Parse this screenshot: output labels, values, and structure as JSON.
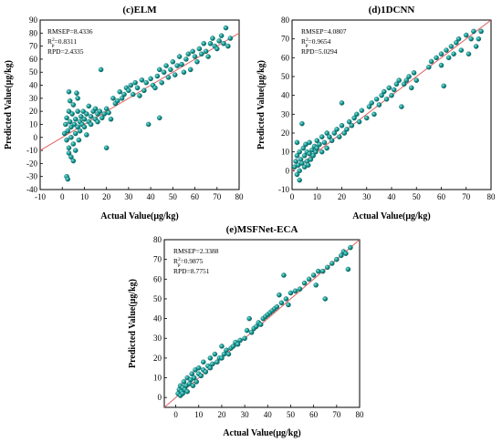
{
  "chart_data": [
    {
      "type": "scatter",
      "title": "(c)ELM",
      "xlabel": "Actual Value(μg/kg)",
      "ylabel": "Predicted Value(μg/kg)",
      "xlim": [
        -10,
        80
      ],
      "ylim": [
        -40,
        90
      ],
      "xticks": [
        -10,
        0,
        10,
        20,
        30,
        40,
        50,
        60,
        70,
        80
      ],
      "yticks": [
        -40,
        -30,
        -20,
        -10,
        0,
        10,
        20,
        30,
        40,
        50,
        60,
        70,
        80,
        90
      ],
      "grid": false,
      "stats": {
        "rmsep": "RMSEP=8.4336",
        "r2_prefix": "R",
        "r2_value": "=0.8311",
        "rpd": "RPD=2.4335"
      },
      "marker_color": "#139a95",
      "line_color": "#e06060",
      "points": [
        [
          1,
          3
        ],
        [
          1.5,
          10
        ],
        [
          2,
          -2
        ],
        [
          2,
          15
        ],
        [
          2.5,
          5
        ],
        [
          3,
          20
        ],
        [
          3,
          -8
        ],
        [
          3.5,
          12
        ],
        [
          2,
          -30
        ],
        [
          2.5,
          -32
        ],
        [
          3,
          35
        ],
        [
          3.5,
          28
        ],
        [
          4,
          0
        ],
        [
          4,
          8
        ],
        [
          4.5,
          18
        ],
        [
          5,
          -5
        ],
        [
          5,
          25
        ],
        [
          5.5,
          10
        ],
        [
          6,
          3
        ],
        [
          6,
          14
        ],
        [
          6.5,
          34
        ],
        [
          7,
          8
        ],
        [
          7,
          20
        ],
        [
          7.5,
          -2
        ],
        [
          8,
          12
        ],
        [
          8,
          5
        ],
        [
          8.5,
          16
        ],
        [
          9,
          10
        ],
        [
          9.5,
          20
        ],
        [
          10,
          8
        ],
        [
          10,
          14
        ],
        [
          11,
          2
        ],
        [
          11,
          18
        ],
        [
          12,
          12
        ],
        [
          12,
          24
        ],
        [
          13,
          10
        ],
        [
          13,
          16
        ],
        [
          14,
          20
        ],
        [
          15,
          14
        ],
        [
          15,
          22
        ],
        [
          16,
          12
        ],
        [
          16,
          18
        ],
        [
          17,
          20
        ],
        [
          17.5,
          52
        ],
        [
          18,
          15
        ],
        [
          19,
          18
        ],
        [
          20,
          22
        ],
        [
          20,
          -8
        ],
        [
          21,
          19
        ],
        [
          22,
          14
        ],
        [
          23,
          30
        ],
        [
          24,
          26
        ],
        [
          25,
          28
        ],
        [
          26,
          35
        ],
        [
          27,
          30
        ],
        [
          28,
          33
        ],
        [
          29,
          38
        ],
        [
          30,
          36
        ],
        [
          31,
          40
        ],
        [
          32,
          33
        ],
        [
          33,
          42
        ],
        [
          34,
          38
        ],
        [
          35,
          32
        ],
        [
          36,
          44
        ],
        [
          37,
          36
        ],
        [
          38,
          42
        ],
        [
          39,
          10
        ],
        [
          40,
          45
        ],
        [
          41,
          40
        ],
        [
          42,
          38
        ],
        [
          43,
          47
        ],
        [
          44,
          52
        ],
        [
          45,
          42
        ],
        [
          46,
          50
        ],
        [
          47,
          55
        ],
        [
          48,
          46
        ],
        [
          49,
          52
        ],
        [
          50,
          58
        ],
        [
          51,
          48
        ],
        [
          52,
          55
        ],
        [
          53,
          62
        ],
        [
          54,
          56
        ],
        [
          55,
          50
        ],
        [
          56,
          60
        ],
        [
          57,
          64
        ],
        [
          58,
          52
        ],
        [
          59,
          66
        ],
        [
          60,
          62
        ],
        [
          61,
          58
        ],
        [
          62,
          68
        ],
        [
          63,
          64
        ],
        [
          64,
          72
        ],
        [
          65,
          66
        ],
        [
          66,
          62
        ],
        [
          67,
          72
        ],
        [
          68,
          76
        ],
        [
          69,
          70
        ],
        [
          70,
          68
        ],
        [
          71,
          74
        ],
        [
          72,
          78
        ],
        [
          73,
          72
        ],
        [
          74,
          84
        ],
        [
          75,
          70
        ],
        [
          76,
          76
        ],
        [
          44,
          15
        ],
        [
          3,
          -12
        ],
        [
          4,
          -15
        ],
        [
          5,
          -18
        ],
        [
          6,
          -10
        ],
        [
          7,
          30
        ]
      ]
    },
    {
      "type": "scatter",
      "title": "(d)1DCNN",
      "xlabel": "Actual Value(μg/kg)",
      "ylabel": "Predicted Value(μg/kg)",
      "xlim": [
        0,
        80
      ],
      "ylim": [
        -10,
        80
      ],
      "xticks": [
        0,
        10,
        20,
        30,
        40,
        50,
        60,
        70,
        80
      ],
      "yticks": [
        -10,
        0,
        10,
        20,
        30,
        40,
        50,
        60,
        70,
        80
      ],
      "grid": false,
      "stats": {
        "rmsep": "RMSEP=4.0807",
        "r2_prefix": "R",
        "r2_value": "=0.9654",
        "rpd": "RPD=5.0294"
      },
      "marker_color": "#139a95",
      "line_color": "#e06060",
      "points": [
        [
          1,
          2
        ],
        [
          1.5,
          5
        ],
        [
          2,
          -2
        ],
        [
          2,
          8
        ],
        [
          2.5,
          3
        ],
        [
          3,
          10
        ],
        [
          3,
          0
        ],
        [
          3.5,
          6
        ],
        [
          4,
          25
        ],
        [
          4,
          4
        ],
        [
          4.5,
          12
        ],
        [
          5,
          2
        ],
        [
          5,
          8
        ],
        [
          5.5,
          14
        ],
        [
          6,
          5
        ],
        [
          6,
          10
        ],
        [
          6.5,
          3
        ],
        [
          7,
          9
        ],
        [
          7,
          15
        ],
        [
          7.5,
          6
        ],
        [
          8,
          11
        ],
        [
          8.5,
          8
        ],
        [
          9,
          13
        ],
        [
          9.5,
          10
        ],
        [
          10,
          12
        ],
        [
          10,
          16
        ],
        [
          11,
          14
        ],
        [
          12,
          10
        ],
        [
          12,
          18
        ],
        [
          13,
          15
        ],
        [
          14,
          12
        ],
        [
          14,
          20
        ],
        [
          15,
          18
        ],
        [
          16,
          16
        ],
        [
          17,
          20
        ],
        [
          18,
          22
        ],
        [
          19,
          18
        ],
        [
          20,
          24
        ],
        [
          20,
          36
        ],
        [
          21,
          20
        ],
        [
          22,
          22
        ],
        [
          23,
          26
        ],
        [
          24,
          24
        ],
        [
          25,
          28
        ],
        [
          26,
          30
        ],
        [
          27,
          26
        ],
        [
          28,
          32
        ],
        [
          30,
          28
        ],
        [
          31,
          34
        ],
        [
          32,
          36
        ],
        [
          33,
          30
        ],
        [
          34,
          38
        ],
        [
          35,
          35
        ],
        [
          36,
          40
        ],
        [
          37,
          42
        ],
        [
          38,
          38
        ],
        [
          39,
          44
        ],
        [
          40,
          40
        ],
        [
          41,
          43
        ],
        [
          42,
          46
        ],
        [
          43,
          48
        ],
        [
          44,
          34
        ],
        [
          45,
          46
        ],
        [
          46,
          48
        ],
        [
          47,
          50
        ],
        [
          48,
          44
        ],
        [
          49,
          52
        ],
        [
          50,
          48
        ],
        [
          55,
          55
        ],
        [
          56,
          58
        ],
        [
          58,
          60
        ],
        [
          60,
          62
        ],
        [
          60,
          56
        ],
        [
          61,
          45
        ],
        [
          62,
          64
        ],
        [
          63,
          60
        ],
        [
          64,
          66
        ],
        [
          65,
          62
        ],
        [
          66,
          68
        ],
        [
          67,
          70
        ],
        [
          68,
          64
        ],
        [
          70,
          72
        ],
        [
          71,
          62
        ],
        [
          72,
          70
        ],
        [
          73,
          74
        ],
        [
          74,
          66
        ],
        [
          75,
          70
        ],
        [
          76,
          74
        ],
        [
          2,
          15
        ],
        [
          3,
          -5
        ]
      ]
    },
    {
      "type": "scatter",
      "title": "(e)MSFNet-ECA",
      "xlabel": "Actual Value(μg/kg)",
      "ylabel": "Predicted Value(μg/kg)",
      "xlim": [
        -5,
        80
      ],
      "ylim": [
        -5,
        80
      ],
      "xticks": [
        0,
        10,
        20,
        30,
        40,
        50,
        60,
        70,
        80
      ],
      "yticks": [
        0,
        10,
        20,
        30,
        40,
        50,
        60,
        70,
        80
      ],
      "grid": false,
      "stats": {
        "rmsep": "RMSEP=2.3388",
        "r2_prefix": "R",
        "r2_value": "=0.9875",
        "rpd": "RPD=8.7751"
      },
      "marker_color": "#139a95",
      "line_color": "#e06060",
      "points": [
        [
          1,
          2
        ],
        [
          1.5,
          4
        ],
        [
          2,
          1
        ],
        [
          2,
          6
        ],
        [
          2.5,
          3
        ],
        [
          3,
          5
        ],
        [
          3.5,
          8
        ],
        [
          4,
          4
        ],
        [
          4.5,
          6
        ],
        [
          5,
          10
        ],
        [
          5,
          3
        ],
        [
          6,
          7
        ],
        [
          6.5,
          9
        ],
        [
          7,
          12
        ],
        [
          7.5,
          6
        ],
        [
          8,
          10
        ],
        [
          8.5,
          14
        ],
        [
          9,
          8
        ],
        [
          10,
          12
        ],
        [
          10,
          15
        ],
        [
          11,
          11
        ],
        [
          12,
          14
        ],
        [
          12,
          18
        ],
        [
          13,
          13
        ],
        [
          14,
          16
        ],
        [
          15,
          15
        ],
        [
          15,
          20
        ],
        [
          16,
          17
        ],
        [
          17,
          22
        ],
        [
          18,
          18
        ],
        [
          19,
          20
        ],
        [
          20,
          20
        ],
        [
          20,
          26
        ],
        [
          21,
          22
        ],
        [
          22,
          24
        ],
        [
          23,
          22
        ],
        [
          24,
          25
        ],
        [
          25,
          26
        ],
        [
          26,
          28
        ],
        [
          27,
          27
        ],
        [
          28,
          29
        ],
        [
          30,
          30
        ],
        [
          31,
          34
        ],
        [
          32,
          40
        ],
        [
          33,
          33
        ],
        [
          34,
          35
        ],
        [
          35,
          36
        ],
        [
          36,
          38
        ],
        [
          37,
          37
        ],
        [
          38,
          40
        ],
        [
          39,
          41
        ],
        [
          40,
          42
        ],
        [
          41,
          43
        ],
        [
          42,
          44
        ],
        [
          43,
          45
        ],
        [
          44,
          46
        ],
        [
          45,
          52
        ],
        [
          46,
          48
        ],
        [
          47,
          62
        ],
        [
          48,
          50
        ],
        [
          49,
          47
        ],
        [
          50,
          53
        ],
        [
          52,
          54
        ],
        [
          54,
          55
        ],
        [
          56,
          58
        ],
        [
          58,
          60
        ],
        [
          60,
          62
        ],
        [
          61,
          57
        ],
        [
          62,
          64
        ],
        [
          64,
          64
        ],
        [
          65,
          50
        ],
        [
          66,
          66
        ],
        [
          68,
          68
        ],
        [
          70,
          70
        ],
        [
          72,
          72
        ],
        [
          73,
          74
        ],
        [
          74,
          73
        ],
        [
          75,
          65
        ],
        [
          76,
          76
        ],
        [
          3,
          2
        ]
      ]
    }
  ]
}
